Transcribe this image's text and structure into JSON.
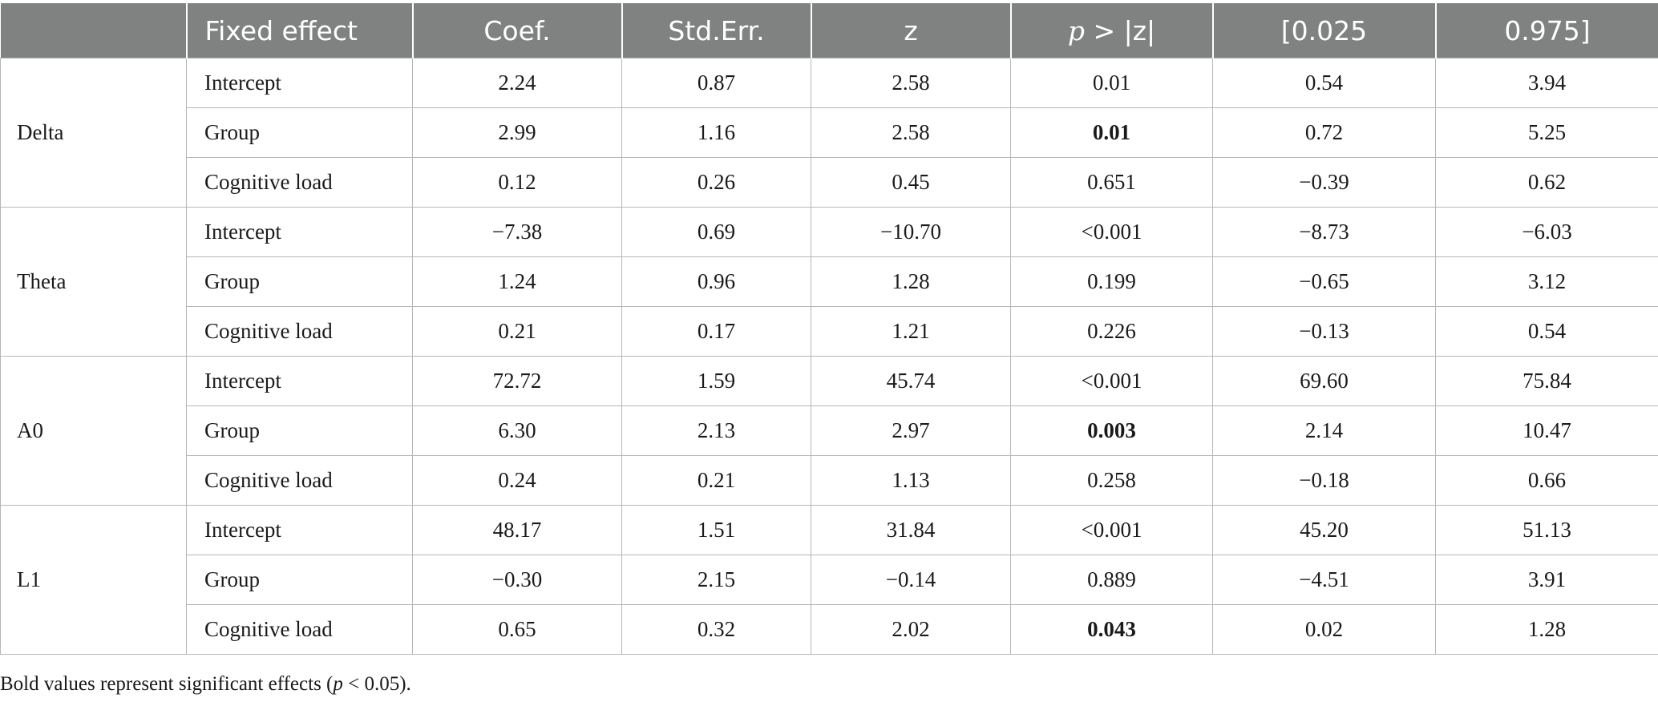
{
  "table": {
    "headers": [
      {
        "label": "",
        "name": "header-band"
      },
      {
        "label": "Fixed effect",
        "name": "header-fixed-effect"
      },
      {
        "label": "Coef.",
        "name": "header-coef"
      },
      {
        "label": "Std.Err.",
        "name": "header-std-err"
      },
      {
        "label": "z",
        "name": "header-z"
      },
      {
        "label_italic": "p",
        "label_rest": " > |z|",
        "name": "header-p"
      },
      {
        "label": "[0.025",
        "name": "header-ci-low"
      },
      {
        "label": "0.975]",
        "name": "header-ci-high"
      }
    ],
    "rows": [
      {
        "band": "Delta",
        "effect": "Intercept",
        "coef": "2.24",
        "se": "0.87",
        "z": "2.58",
        "p": "0.01",
        "p_bold": false,
        "lo": "0.54",
        "hi": "3.94"
      },
      {
        "band": "",
        "effect": "Group",
        "coef": "2.99",
        "se": "1.16",
        "z": "2.58",
        "p": "0.01",
        "p_bold": true,
        "lo": "0.72",
        "hi": "5.25"
      },
      {
        "band": "",
        "effect": "Cognitive load",
        "coef": "0.12",
        "se": "0.26",
        "z": "0.45",
        "p": "0.651",
        "p_bold": false,
        "lo": "−0.39",
        "hi": "0.62"
      },
      {
        "band": "Theta",
        "effect": "Intercept",
        "coef": "−7.38",
        "se": "0.69",
        "z": "−10.70",
        "p": "<0.001",
        "p_bold": false,
        "lo": "−8.73",
        "hi": "−6.03"
      },
      {
        "band": "",
        "effect": "Group",
        "coef": "1.24",
        "se": "0.96",
        "z": "1.28",
        "p": "0.199",
        "p_bold": false,
        "lo": "−0.65",
        "hi": "3.12"
      },
      {
        "band": "",
        "effect": "Cognitive load",
        "coef": "0.21",
        "se": "0.17",
        "z": "1.21",
        "p": "0.226",
        "p_bold": false,
        "lo": "−0.13",
        "hi": "0.54"
      },
      {
        "band": "A0",
        "effect": "Intercept",
        "coef": "72.72",
        "se": "1.59",
        "z": "45.74",
        "p": "<0.001",
        "p_bold": false,
        "lo": "69.60",
        "hi": "75.84"
      },
      {
        "band": "",
        "effect": "Group",
        "coef": "6.30",
        "se": "2.13",
        "z": "2.97",
        "p": "0.003",
        "p_bold": true,
        "lo": "2.14",
        "hi": "10.47"
      },
      {
        "band": "",
        "effect": "Cognitive load",
        "coef": "0.24",
        "se": "0.21",
        "z": "1.13",
        "p": "0.258",
        "p_bold": false,
        "lo": "−0.18",
        "hi": "0.66"
      },
      {
        "band": "L1",
        "effect": "Intercept",
        "coef": "48.17",
        "se": "1.51",
        "z": "31.84",
        "p": "<0.001",
        "p_bold": false,
        "lo": "45.20",
        "hi": "51.13"
      },
      {
        "band": "",
        "effect": "Group",
        "coef": "−0.30",
        "se": "2.15",
        "z": "−0.14",
        "p": "0.889",
        "p_bold": false,
        "lo": "−4.51",
        "hi": "3.91"
      },
      {
        "band": "",
        "effect": "Cognitive load",
        "coef": "0.65",
        "se": "0.32",
        "z": "2.02",
        "p": "0.043",
        "p_bold": true,
        "lo": "0.02",
        "hi": "1.28"
      }
    ]
  },
  "footnote": {
    "before": "Bold values represent significant effects (",
    "italic": "p",
    "after": " < 0.05)."
  },
  "colors": {
    "header_bg": "#808281",
    "header_text": "#ffffff",
    "grid": "#b7b7b7"
  }
}
